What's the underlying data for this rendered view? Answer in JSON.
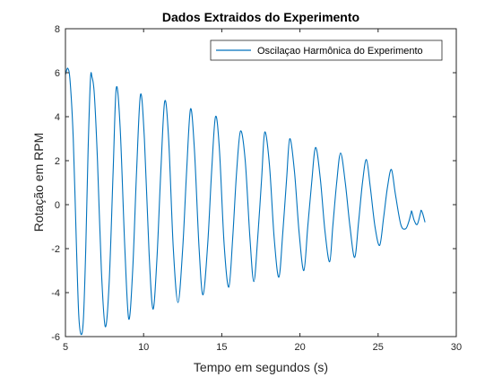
{
  "chart_data": {
    "type": "line",
    "title": "Dados Extraidos do Experimento",
    "xlabel": "Tempo em segundos (s)",
    "ylabel": "Rotação em RPM",
    "xlim": [
      5,
      30
    ],
    "ylim": [
      -6,
      8
    ],
    "x_ticks": [
      5,
      10,
      15,
      20,
      25,
      30
    ],
    "x_tick_labels": [
      "5",
      "10",
      "15",
      "20",
      "25",
      "30"
    ],
    "y_ticks": [
      -6,
      -4,
      -2,
      0,
      2,
      4,
      6,
      8
    ],
    "y_tick_labels": [
      "-6",
      "-4",
      "-2",
      "0",
      "2",
      "4",
      "6",
      "8"
    ],
    "grid": false,
    "legend": {
      "position": "top-right",
      "entries": [
        "Oscilaçao Harmônica do Experimento"
      ]
    },
    "series": [
      {
        "name": "Oscilaçao Harmônica do Experimento",
        "color": "#0072bd",
        "points": [
          [
            5.0,
            5.9
          ],
          [
            5.15,
            6.2
          ],
          [
            5.3,
            5.6
          ],
          [
            5.5,
            3.0
          ],
          [
            5.7,
            -1.8
          ],
          [
            5.85,
            -5.0
          ],
          [
            6.0,
            -5.9
          ],
          [
            6.15,
            -5.2
          ],
          [
            6.3,
            -2.0
          ],
          [
            6.45,
            2.5
          ],
          [
            6.6,
            5.7
          ],
          [
            6.7,
            5.8
          ],
          [
            6.85,
            5.0
          ],
          [
            7.05,
            2.0
          ],
          [
            7.3,
            -3.0
          ],
          [
            7.55,
            -5.55
          ],
          [
            7.8,
            -3.5
          ],
          [
            8.05,
            1.5
          ],
          [
            8.25,
            5.3
          ],
          [
            8.5,
            3.5
          ],
          [
            8.8,
            -2.0
          ],
          [
            9.05,
            -5.2
          ],
          [
            9.3,
            -3.0
          ],
          [
            9.55,
            1.5
          ],
          [
            9.8,
            5.0
          ],
          [
            10.05,
            3.0
          ],
          [
            10.35,
            -2.2
          ],
          [
            10.6,
            -4.75
          ],
          [
            10.85,
            -2.5
          ],
          [
            11.1,
            1.5
          ],
          [
            11.35,
            4.7
          ],
          [
            11.6,
            3.0
          ],
          [
            11.9,
            -2.0
          ],
          [
            12.2,
            -4.45
          ],
          [
            12.5,
            -2.0
          ],
          [
            12.75,
            1.5
          ],
          [
            13.0,
            4.35
          ],
          [
            13.25,
            2.5
          ],
          [
            13.55,
            -2.0
          ],
          [
            13.8,
            -4.1
          ],
          [
            14.1,
            -1.8
          ],
          [
            14.35,
            1.5
          ],
          [
            14.6,
            4.0
          ],
          [
            14.85,
            2.5
          ],
          [
            15.15,
            -1.8
          ],
          [
            15.45,
            -3.75
          ],
          [
            15.7,
            -1.5
          ],
          [
            15.95,
            1.5
          ],
          [
            16.2,
            3.35
          ],
          [
            16.5,
            2.0
          ],
          [
            16.8,
            -1.5
          ],
          [
            17.05,
            -3.5
          ],
          [
            17.3,
            -1.5
          ],
          [
            17.55,
            1.2
          ],
          [
            17.75,
            3.3
          ],
          [
            18.05,
            1.8
          ],
          [
            18.35,
            -1.5
          ],
          [
            18.65,
            -3.3
          ],
          [
            18.9,
            -1.3
          ],
          [
            19.15,
            1.2
          ],
          [
            19.35,
            3.0
          ],
          [
            19.65,
            1.5
          ],
          [
            19.95,
            -1.3
          ],
          [
            20.25,
            -3.0
          ],
          [
            20.5,
            -1.0
          ],
          [
            20.75,
            1.0
          ],
          [
            21.0,
            2.6
          ],
          [
            21.3,
            1.2
          ],
          [
            21.6,
            -1.2
          ],
          [
            21.9,
            -2.6
          ],
          [
            22.1,
            -1.0
          ],
          [
            22.35,
            1.0
          ],
          [
            22.6,
            2.35
          ],
          [
            22.9,
            1.0
          ],
          [
            23.2,
            -1.0
          ],
          [
            23.5,
            -2.4
          ],
          [
            23.75,
            -0.8
          ],
          [
            24.0,
            1.0
          ],
          [
            24.25,
            2.05
          ],
          [
            24.5,
            0.8
          ],
          [
            24.8,
            -1.0
          ],
          [
            25.1,
            -1.85
          ],
          [
            25.35,
            -0.6
          ],
          [
            25.6,
            0.8
          ],
          [
            25.85,
            1.6
          ],
          [
            26.1,
            0.5
          ],
          [
            26.45,
            -0.9
          ],
          [
            26.75,
            -1.1
          ],
          [
            26.95,
            -0.8
          ],
          [
            27.1,
            -0.4
          ],
          [
            27.15,
            -0.3
          ],
          [
            27.3,
            -0.7
          ],
          [
            27.5,
            -0.9
          ],
          [
            27.7,
            -0.4
          ],
          [
            27.75,
            -0.25
          ],
          [
            27.85,
            -0.4
          ],
          [
            28.0,
            -0.8
          ]
        ]
      }
    ]
  }
}
